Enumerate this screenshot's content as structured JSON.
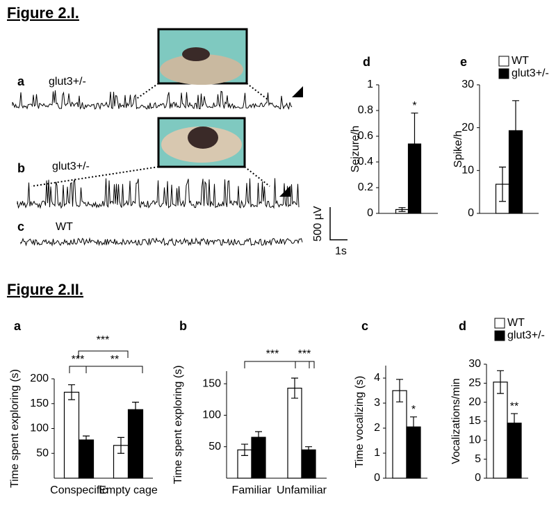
{
  "headings": [
    "Figure 2.I.",
    "Figure 2.II."
  ],
  "traces": [
    {
      "letter": "a",
      "label": "glut3+/-"
    },
    {
      "letter": "b",
      "label": "glut3+/-"
    },
    {
      "letter": "c",
      "label": "WT"
    }
  ],
  "scale_bar": {
    "y": "500 µV",
    "x": "1s"
  },
  "chart_data": [
    {
      "type": "bar",
      "panel": "d",
      "ylabel": "Seizure/h",
      "categories": [
        null
      ],
      "series": [
        {
          "color": "#ffffff",
          "values": [
            0.03
          ],
          "errors": [
            0.015
          ]
        },
        {
          "color": "#000000",
          "values": [
            0.54
          ],
          "errors": [
            0.24
          ]
        }
      ],
      "ylim": [
        0,
        1
      ],
      "yticks": [
        0,
        0.2,
        0.4,
        0.6,
        0.8,
        1
      ],
      "annotations": [
        "*"
      ]
    },
    {
      "type": "bar",
      "panel": "e",
      "ylabel": "Spike/h",
      "categories": [
        null
      ],
      "series": [
        {
          "name": "WT",
          "color": "#ffffff",
          "values": [
            6.8
          ],
          "errors": [
            4
          ]
        },
        {
          "name": "glut3+/-",
          "color": "#000000",
          "values": [
            19.3
          ],
          "errors": [
            7
          ]
        }
      ],
      "ylim": [
        0,
        30
      ],
      "yticks": [
        0,
        10,
        20,
        30
      ],
      "legend": "upper left"
    },
    {
      "type": "bar",
      "panel": "a",
      "ylabel": "Time spent exploring (s)",
      "categories": [
        "Conspecific",
        "Empty cage"
      ],
      "series": [
        {
          "color": "#ffffff",
          "values": [
            173,
            66
          ],
          "errors": [
            15,
            16
          ]
        },
        {
          "color": "#000000",
          "values": [
            77,
            138
          ],
          "errors": [
            8,
            15
          ]
        }
      ],
      "ylim": [
        0,
        200
      ],
      "yticks": [
        50,
        100,
        150,
        200
      ],
      "annotations": [
        "***",
        "***",
        "**"
      ]
    },
    {
      "type": "bar",
      "panel": "b",
      "ylabel": "Time spent exploring (s)",
      "categories": [
        "Familiar",
        "Unfamiliar"
      ],
      "series": [
        {
          "color": "#ffffff",
          "values": [
            45,
            143
          ],
          "errors": [
            9,
            16
          ]
        },
        {
          "color": "#000000",
          "values": [
            65,
            45
          ],
          "errors": [
            9,
            5
          ]
        }
      ],
      "ylim": [
        0,
        170
      ],
      "yticks": [
        50,
        100,
        150
      ],
      "annotations": [
        "***",
        "***"
      ]
    },
    {
      "type": "bar",
      "panel": "c",
      "ylabel": "Time vocalizing (s)",
      "categories": [
        null
      ],
      "series": [
        {
          "color": "#ffffff",
          "values": [
            3.5
          ],
          "errors": [
            0.45
          ]
        },
        {
          "color": "#000000",
          "values": [
            2.05
          ],
          "errors": [
            0.4
          ]
        }
      ],
      "ylim": [
        0,
        4.5
      ],
      "yticks": [
        0,
        1,
        2,
        3,
        4
      ],
      "annotations": [
        "*"
      ]
    },
    {
      "type": "bar",
      "panel": "d",
      "ylabel": "Vocalizations/min",
      "categories": [
        null
      ],
      "series": [
        {
          "name": "WT",
          "color": "#ffffff",
          "values": [
            25.3
          ],
          "errors": [
            3
          ]
        },
        {
          "name": "glut3+/-",
          "color": "#000000",
          "values": [
            14.5
          ],
          "errors": [
            2.5
          ]
        }
      ],
      "ylim": [
        0,
        30
      ],
      "yticks": [
        0,
        5,
        10,
        15,
        20,
        25,
        30
      ],
      "annotations": [
        "**"
      ],
      "legend": "upper left"
    }
  ]
}
